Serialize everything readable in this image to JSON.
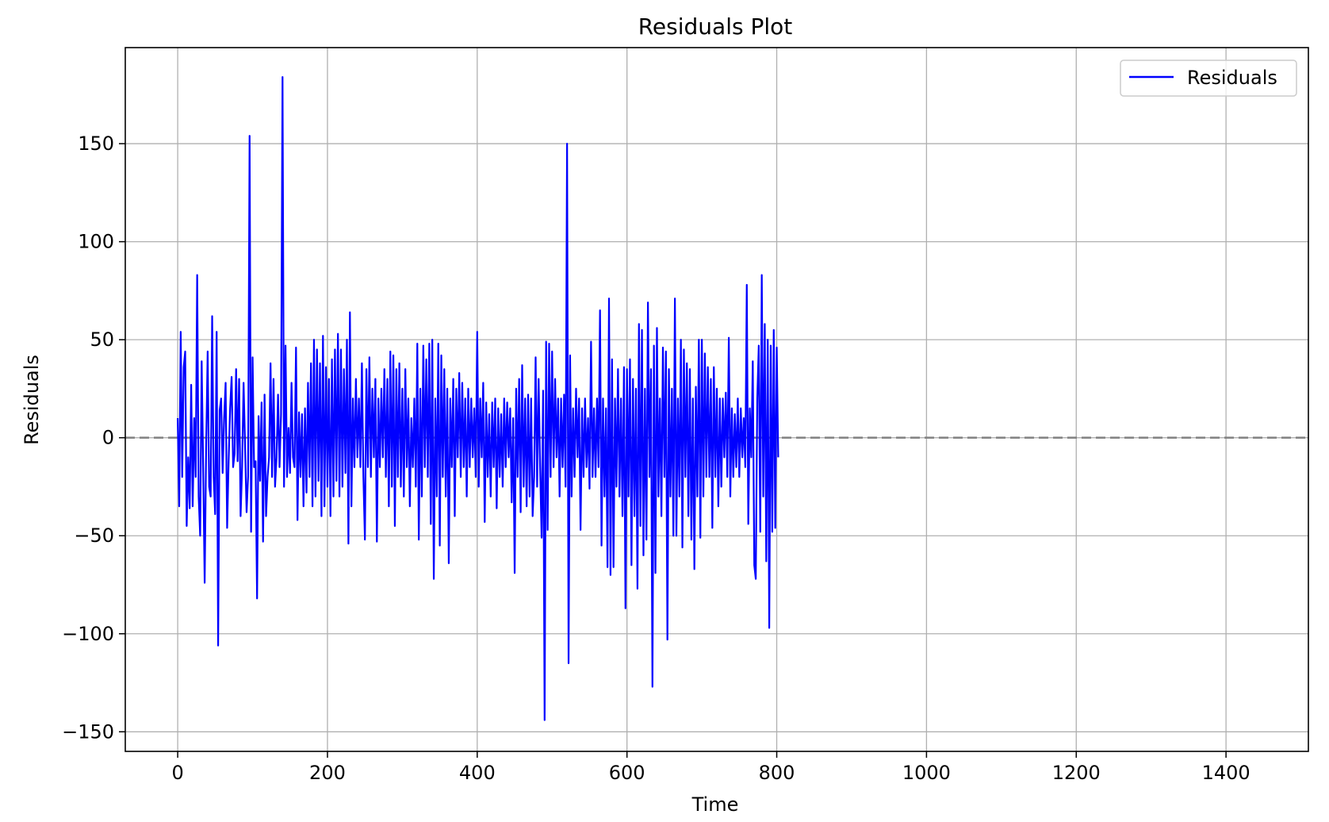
{
  "chart_data": {
    "type": "line",
    "title": "Residuals Plot",
    "xlabel": "Time",
    "ylabel": "Residuals",
    "xlim": [
      -70,
      1510
    ],
    "ylim": [
      -160,
      199
    ],
    "xticks": [
      0,
      200,
      400,
      600,
      800,
      1000,
      1200,
      1400
    ],
    "yticks": [
      -150,
      -100,
      -50,
      0,
      50,
      100,
      150
    ],
    "xtick_labels": [
      "0",
      "200",
      "400",
      "600",
      "800",
      "1000",
      "1200",
      "1400"
    ],
    "ytick_labels": [
      "−150",
      "−100",
      "−50",
      "0",
      "50",
      "100",
      "150"
    ],
    "grid": true,
    "legend": {
      "position": "upper right",
      "entries": [
        {
          "label": "Residuals",
          "color": "#0000ff"
        }
      ]
    },
    "reference_line": {
      "y": 0,
      "style": "dashed",
      "color": "#808080"
    },
    "series": [
      {
        "name": "Residuals",
        "color": "#0000ff",
        "x_start": 0,
        "x_step": 2,
        "values": [
          10,
          -35,
          54,
          -20,
          36,
          44,
          -45,
          -10,
          -36,
          27,
          -35,
          10,
          -20,
          83,
          -30,
          -50,
          39,
          -15,
          -74,
          -5,
          44,
          -25,
          -30,
          62,
          -20,
          -39,
          54,
          -106,
          14,
          20,
          -18,
          10,
          28,
          -46,
          -12,
          15,
          31,
          -15,
          -8,
          35,
          -12,
          30,
          -40,
          -15,
          28,
          -5,
          -38,
          -20,
          154,
          -48,
          41,
          -15,
          -12,
          -82,
          11,
          -22,
          18,
          -53,
          22,
          -40,
          -20,
          -10,
          38,
          -20,
          30,
          -25,
          -10,
          22,
          -15,
          12,
          184,
          -25,
          47,
          -20,
          5,
          -18,
          28,
          -10,
          -15,
          46,
          -42,
          13,
          -20,
          12,
          -35,
          15,
          -28,
          28,
          -20,
          38,
          -35,
          50,
          -30,
          45,
          -22,
          38,
          -40,
          52,
          -35,
          36,
          -25,
          30,
          -40,
          40,
          -30,
          45,
          -22,
          53,
          -30,
          45,
          -25,
          35,
          -18,
          50,
          -54,
          64,
          -35,
          20,
          -15,
          30,
          -10,
          20,
          -15,
          38,
          -20,
          -52,
          35,
          -15,
          41,
          -20,
          25,
          -10,
          30,
          -53,
          20,
          -15,
          25,
          -10,
          35,
          -20,
          30,
          -35,
          44,
          -25,
          42,
          -45,
          35,
          -20,
          38,
          -25,
          25,
          -30,
          35,
          -15,
          20,
          -35,
          10,
          -15,
          20,
          -25,
          48,
          -52,
          25,
          -30,
          47,
          -15,
          40,
          -20,
          48,
          -44,
          50,
          -72,
          20,
          -30,
          48,
          -55,
          42,
          -20,
          35,
          -30,
          25,
          -64,
          20,
          -15,
          30,
          -40,
          25,
          -10,
          33,
          -20,
          28,
          -15,
          20,
          -30,
          25,
          -15,
          20,
          -10,
          15,
          -20,
          54,
          -25,
          20,
          -10,
          28,
          -43,
          18,
          -20,
          12,
          -30,
          18,
          -15,
          20,
          -36,
          15,
          -20,
          12,
          -25,
          20,
          -15,
          18,
          -10,
          15,
          -33,
          10,
          -69,
          25,
          -20,
          30,
          -38,
          37,
          -25,
          20,
          -35,
          22,
          -30,
          20,
          -40,
          -20,
          41,
          -25,
          30,
          -15,
          -51,
          24,
          -144,
          49,
          -47,
          48,
          -20,
          44,
          -15,
          30,
          -10,
          20,
          -30,
          20,
          -15,
          22,
          -25,
          150,
          -115,
          42,
          -30,
          15,
          -20,
          25,
          -10,
          20,
          -47,
          15,
          -20,
          20,
          -15,
          10,
          -26,
          49,
          -20,
          15,
          -20,
          20,
          -15,
          65,
          -55,
          20,
          -30,
          15,
          -66,
          71,
          -70,
          40,
          -66,
          20,
          -25,
          35,
          -30,
          20,
          -40,
          36,
          -87,
          35,
          -30,
          40,
          -65,
          30,
          -40,
          25,
          -77,
          58,
          -45,
          55,
          -60,
          25,
          -52,
          69,
          -20,
          35,
          -127,
          47,
          -69,
          56,
          -30,
          20,
          -40,
          46,
          -20,
          44,
          -103,
          35,
          -30,
          25,
          -50,
          71,
          -50,
          20,
          -30,
          50,
          -56,
          45,
          -20,
          38,
          -40,
          35,
          -52,
          20,
          -67,
          26,
          -30,
          50,
          -51,
          50,
          -30,
          43,
          -20,
          36,
          -20,
          30,
          -46,
          36,
          -20,
          25,
          -35,
          20,
          -25,
          20,
          -10,
          23,
          -20,
          51,
          -30,
          15,
          -20,
          12,
          -15,
          20,
          -20,
          15,
          -10,
          10,
          -15,
          78,
          -44,
          15,
          -10,
          39,
          -65,
          -72,
          20,
          47,
          -48,
          83,
          -30,
          58,
          -63,
          50,
          -97,
          47,
          -48,
          55,
          -46,
          46,
          -10
        ]
      }
    ]
  }
}
